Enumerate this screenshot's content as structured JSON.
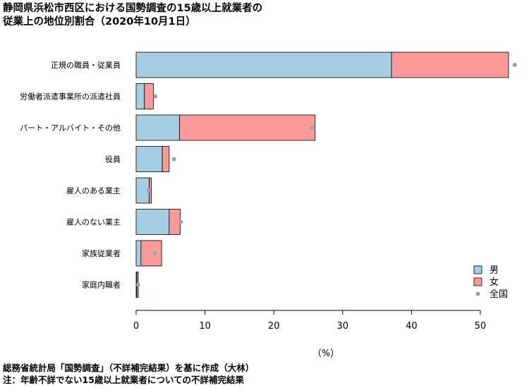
{
  "title_line1": "静岡県浜松市西区における国勢調査の15歳以上就業者の",
  "title_line2": "従業上の地位別割合（2020年10月1日）",
  "footer_line1": "総務省統計局「国勢調査」（不詳補完結果）を基に作成（大林）",
  "footer_line2": "注：年齢不詳でない15歳以上就業者についての不詳補完結果",
  "chart_data": {
    "type": "bar",
    "orientation": "horizontal",
    "stacked": true,
    "xlabel": "（%）",
    "xlim": [
      0,
      55
    ],
    "xticks": [
      0,
      10,
      20,
      30,
      40,
      50
    ],
    "categories": [
      "正規の職員・従業員",
      "労働者派遣事業所の派遣社員",
      "パート・アルバイト・その他",
      "役員",
      "雇人のある業主",
      "雇人のない業主",
      "家族従業者",
      "家庭内職者"
    ],
    "series": [
      {
        "name": "男",
        "color": "#a6cee3",
        "values": [
          37.1,
          1.2,
          6.3,
          3.8,
          1.9,
          4.8,
          0.7,
          0.1
        ]
      },
      {
        "name": "女",
        "color": "#fb9a99",
        "values": [
          17.0,
          1.3,
          19.7,
          1.0,
          0.3,
          1.6,
          3.0,
          0.2
        ]
      }
    ],
    "overlay": {
      "name": "全国",
      "color": "#a0a0a0",
      "values": [
        55.0,
        2.8,
        25.5,
        5.5,
        1.8,
        6.5,
        2.7,
        0.3
      ]
    },
    "legend_position": "bottom-right",
    "grid": false
  }
}
